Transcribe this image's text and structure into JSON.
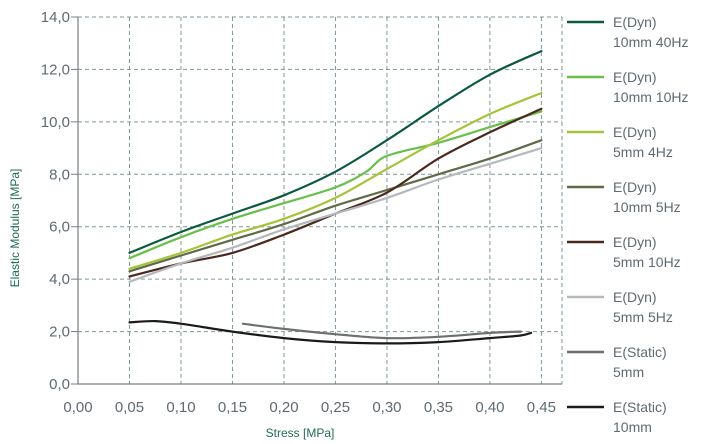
{
  "chart_data": {
    "type": "line",
    "title": "",
    "xlabel": "Stress [MPa]",
    "ylabel": "Elastic Modulus [MPa]",
    "xlim": [
      0,
      0.47
    ],
    "ylim": [
      0,
      14
    ],
    "x_ticks": [
      "0,00",
      "0,05",
      "0,10",
      "0,15",
      "0,20",
      "0,25",
      "0,30",
      "0,35",
      "0,40",
      "0,45"
    ],
    "y_ticks": [
      "0,0",
      "2,0",
      "4,0",
      "6,0",
      "8,0",
      "10,0",
      "12,0",
      "14,0"
    ],
    "grid": true,
    "legend_position": "right",
    "series": [
      {
        "name_line1": "E(Dyn)",
        "name_line2": "10mm 40Hz",
        "color": "#0b5a3e",
        "points": [
          [
            0.05,
            5.0
          ],
          [
            0.1,
            5.8
          ],
          [
            0.15,
            6.5
          ],
          [
            0.2,
            7.2
          ],
          [
            0.25,
            8.1
          ],
          [
            0.3,
            9.3
          ],
          [
            0.35,
            10.6
          ],
          [
            0.4,
            11.8
          ],
          [
            0.45,
            12.7
          ]
        ]
      },
      {
        "name_line1": "E(Dyn)",
        "name_line2": "10mm 10Hz",
        "color": "#6abf4b",
        "points": [
          [
            0.05,
            4.8
          ],
          [
            0.1,
            5.6
          ],
          [
            0.15,
            6.3
          ],
          [
            0.2,
            6.9
          ],
          [
            0.25,
            7.5
          ],
          [
            0.28,
            8.1
          ],
          [
            0.3,
            8.7
          ],
          [
            0.35,
            9.2
          ],
          [
            0.4,
            9.8
          ],
          [
            0.45,
            10.4
          ]
        ]
      },
      {
        "name_line1": "E(Dyn)",
        "name_line2": "5mm 4Hz",
        "color": "#a6c43a",
        "points": [
          [
            0.05,
            4.4
          ],
          [
            0.1,
            5.0
          ],
          [
            0.15,
            5.7
          ],
          [
            0.2,
            6.3
          ],
          [
            0.25,
            7.1
          ],
          [
            0.3,
            8.2
          ],
          [
            0.35,
            9.3
          ],
          [
            0.4,
            10.3
          ],
          [
            0.45,
            11.1
          ]
        ]
      },
      {
        "name_line1": "E(Dyn)",
        "name_line2": "10mm 5Hz",
        "color": "#5f6b48",
        "points": [
          [
            0.05,
            4.3
          ],
          [
            0.1,
            4.9
          ],
          [
            0.15,
            5.5
          ],
          [
            0.2,
            6.1
          ],
          [
            0.25,
            6.8
          ],
          [
            0.3,
            7.4
          ],
          [
            0.35,
            8.0
          ],
          [
            0.4,
            8.6
          ],
          [
            0.45,
            9.3
          ]
        ]
      },
      {
        "name_line1": "E(Dyn)",
        "name_line2": "5mm 10Hz",
        "color": "#4a2a1f",
        "points": [
          [
            0.05,
            4.1
          ],
          [
            0.1,
            4.6
          ],
          [
            0.15,
            5.0
          ],
          [
            0.2,
            5.7
          ],
          [
            0.25,
            6.5
          ],
          [
            0.3,
            7.3
          ],
          [
            0.35,
            8.6
          ],
          [
            0.4,
            9.6
          ],
          [
            0.45,
            10.5
          ]
        ]
      },
      {
        "name_line1": "E(Dyn)",
        "name_line2": "5mm 5Hz",
        "color": "#b5b9bd",
        "points": [
          [
            0.05,
            3.9
          ],
          [
            0.1,
            4.6
          ],
          [
            0.15,
            5.2
          ],
          [
            0.2,
            5.9
          ],
          [
            0.25,
            6.5
          ],
          [
            0.3,
            7.1
          ],
          [
            0.35,
            7.8
          ],
          [
            0.4,
            8.4
          ],
          [
            0.45,
            9.0
          ]
        ]
      },
      {
        "name_line1": "E(Static)",
        "name_line2": "5mm",
        "color": "#6e6f70",
        "points": [
          [
            0.16,
            2.3
          ],
          [
            0.2,
            2.1
          ],
          [
            0.25,
            1.9
          ],
          [
            0.3,
            1.75
          ],
          [
            0.35,
            1.8
          ],
          [
            0.4,
            1.95
          ],
          [
            0.43,
            2.0
          ]
        ]
      },
      {
        "name_line1": "E(Static)",
        "name_line2": "10mm",
        "color": "#1a1a1a",
        "points": [
          [
            0.05,
            2.35
          ],
          [
            0.075,
            2.4
          ],
          [
            0.1,
            2.3
          ],
          [
            0.15,
            2.0
          ],
          [
            0.2,
            1.75
          ],
          [
            0.25,
            1.6
          ],
          [
            0.3,
            1.55
          ],
          [
            0.35,
            1.6
          ],
          [
            0.4,
            1.75
          ],
          [
            0.43,
            1.85
          ],
          [
            0.44,
            1.95
          ]
        ]
      }
    ]
  }
}
